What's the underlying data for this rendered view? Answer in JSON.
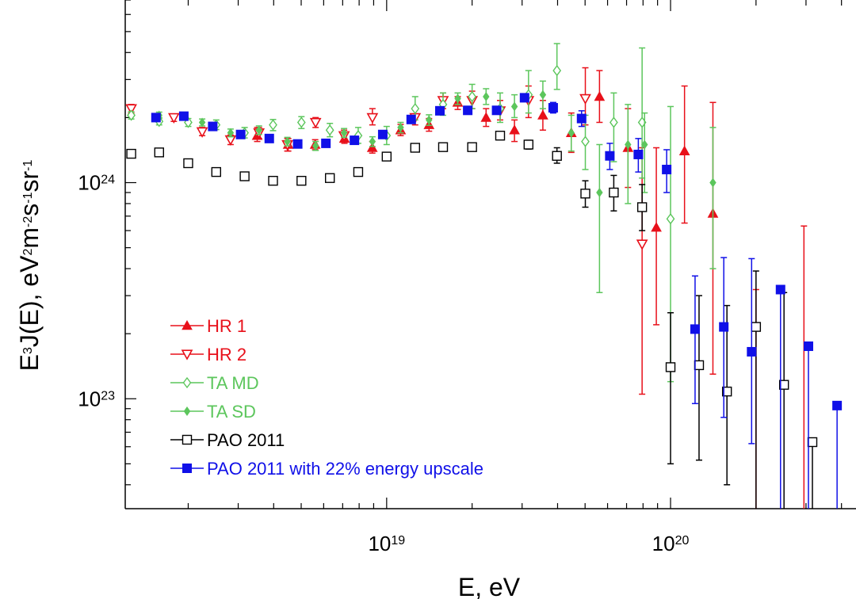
{
  "chart_data": {
    "type": "scatter",
    "xscale": "log",
    "yscale": "log",
    "xlim": [
      1.2e+18,
      4.5e+20
    ],
    "ylim": [
      3.1e+22,
      7e+24
    ],
    "xlabel": {
      "base": "E, eV"
    },
    "ylabel": {
      "p1": "E",
      "p1sup": "3",
      "p2": "J(E), eV",
      "p2sup": "2",
      "p3": "m",
      "p3sup": "-2",
      "p4": "s",
      "p4sup": "-1",
      "p5": "sr",
      "p5sup": "-1"
    },
    "xticks": [
      {
        "value": 1e+19,
        "base": "10",
        "exp": "19"
      },
      {
        "value": 1e+20,
        "base": "10",
        "exp": "20"
      }
    ],
    "yticks": [
      {
        "value": 1e+24,
        "base": "10",
        "exp": "24"
      },
      {
        "value": 1e+23,
        "base": "10",
        "exp": "23"
      }
    ],
    "legend_position": "bottom-left",
    "series": [
      {
        "name": "HR 1",
        "color": "#e8101a",
        "marker": "triangle-filled",
        "points": [
          {
            "x": 3.5e+18,
            "y": 1.65e+24,
            "lo": 1.55e+24,
            "hi": 1.8e+24
          },
          {
            "x": 4.5e+18,
            "y": 1.5e+24,
            "lo": 1.4e+24,
            "hi": 1.6e+24
          },
          {
            "x": 5.6e+18,
            "y": 1.5e+24,
            "lo": 1.42e+24,
            "hi": 1.58e+24
          },
          {
            "x": 7.1e+18,
            "y": 1.6e+24,
            "lo": 1.52e+24,
            "hi": 1.7e+24
          },
          {
            "x": 8.9e+18,
            "y": 1.45e+24,
            "lo": 1.37e+24,
            "hi": 1.55e+24
          },
          {
            "x": 1.12e+19,
            "y": 1.75e+24,
            "lo": 1.65e+24,
            "hi": 1.86e+24
          },
          {
            "x": 1.41e+19,
            "y": 1.85e+24,
            "lo": 1.73e+24,
            "hi": 1.98e+24
          },
          {
            "x": 1.78e+19,
            "y": 2.35e+24,
            "lo": 2.18e+24,
            "hi": 2.5e+24
          },
          {
            "x": 2.24e+19,
            "y": 2e+24,
            "lo": 1.82e+24,
            "hi": 2.2e+24
          },
          {
            "x": 2.82e+19,
            "y": 1.75e+24,
            "lo": 1.55e+24,
            "hi": 1.95e+24
          },
          {
            "x": 3.55e+19,
            "y": 2.05e+24,
            "lo": 1.75e+24,
            "hi": 2.4e+24
          },
          {
            "x": 4.47e+19,
            "y": 1.7e+24,
            "lo": 1.38e+24,
            "hi": 2.1e+24
          },
          {
            "x": 5.62e+19,
            "y": 2.5e+24,
            "lo": 1.9e+24,
            "hi": 3.3e+24
          },
          {
            "x": 7.08e+19,
            "y": 1.45e+24,
            "lo": 9.5e+23,
            "hi": 2.2e+24
          },
          {
            "x": 8.91e+19,
            "y": 6.2e+23,
            "lo": 2.2e+23,
            "hi": 1.45e+24
          },
          {
            "x": 1.12e+20,
            "y": 1.4e+24,
            "lo": 6.5e+23,
            "hi": 2.8e+24
          },
          {
            "x": 1.41e+20,
            "y": 7.2e+23,
            "lo": 1.3e+23,
            "hi": 2.35e+24
          },
          {
            "x": 2e+20,
            "y": null,
            "lo": 3.1e+22,
            "hi": 3.2e+23
          },
          {
            "x": 2.95e+20,
            "y": null,
            "lo": 3.1e+22,
            "hi": 6.3e+23
          }
        ]
      },
      {
        "name": "HR 2",
        "color": "#e8101a",
        "marker": "triangle-down-open",
        "points": [
          {
            "x": 1.26e+18,
            "y": 2.2e+24,
            "lo": 2.1e+24,
            "hi": 2.3e+24
          },
          {
            "x": 1.78e+18,
            "y": 2e+24,
            "lo": 1.92e+24,
            "hi": 2.08e+24
          },
          {
            "x": 2.24e+18,
            "y": 1.72e+24,
            "lo": 1.65e+24,
            "hi": 1.8e+24
          },
          {
            "x": 2.82e+18,
            "y": 1.58e+24,
            "lo": 1.5e+24,
            "hi": 1.66e+24
          },
          {
            "x": 3.55e+18,
            "y": 1.7e+24,
            "lo": 1.6e+24,
            "hi": 1.8e+24
          },
          {
            "x": 4.47e+18,
            "y": 1.5e+24,
            "lo": 1.4e+24,
            "hi": 1.6e+24
          },
          {
            "x": 5.62e+18,
            "y": 1.9e+24,
            "lo": 1.8e+24,
            "hi": 2e+24
          },
          {
            "x": 7.08e+18,
            "y": 1.65e+24,
            "lo": 1.55e+24,
            "hi": 1.75e+24
          },
          {
            "x": 8.91e+18,
            "y": 2e+24,
            "lo": 1.85e+24,
            "hi": 2.2e+24
          },
          {
            "x": 1.26e+19,
            "y": 2e+24,
            "lo": 1.85e+24,
            "hi": 2.2e+24
          },
          {
            "x": 1.58e+19,
            "y": 2.4e+24,
            "lo": 2.2e+24,
            "hi": 2.6e+24
          },
          {
            "x": 2e+19,
            "y": 2.4e+24,
            "lo": 2.2e+24,
            "hi": 2.65e+24
          },
          {
            "x": 2.51e+19,
            "y": 2.15e+24,
            "lo": 1.95e+24,
            "hi": 2.4e+24
          },
          {
            "x": 3.16e+19,
            "y": 2.4e+24,
            "lo": 2e+24,
            "hi": 2.8e+24
          },
          {
            "x": 5.01e+19,
            "y": 2.45e+24,
            "lo": 1.85e+24,
            "hi": 3.4e+24
          },
          {
            "x": 7.94e+19,
            "y": 5.2e+23,
            "lo": 1.05e+23,
            "hi": 1.45e+24
          }
        ]
      },
      {
        "name": "TA MD",
        "color": "#5cc65c",
        "marker": "diamond-open",
        "points": [
          {
            "x": 1.26e+18,
            "y": 2.05e+24,
            "lo": 1.97e+24,
            "hi": 2.13e+24
          },
          {
            "x": 1.58e+18,
            "y": 1.92e+24,
            "lo": 1.85e+24,
            "hi": 2e+24
          },
          {
            "x": 2e+18,
            "y": 1.9e+24,
            "lo": 1.82e+24,
            "hi": 1.98e+24
          },
          {
            "x": 2.51e+18,
            "y": 1.85e+24,
            "lo": 1.76e+24,
            "hi": 1.95e+24
          },
          {
            "x": 3.16e+18,
            "y": 1.7e+24,
            "lo": 1.61e+24,
            "hi": 1.8e+24
          },
          {
            "x": 3.98e+18,
            "y": 1.85e+24,
            "lo": 1.74e+24,
            "hi": 1.96e+24
          },
          {
            "x": 5.01e+18,
            "y": 1.9e+24,
            "lo": 1.78e+24,
            "hi": 2.02e+24
          },
          {
            "x": 6.31e+18,
            "y": 1.75e+24,
            "lo": 1.63e+24,
            "hi": 1.88e+24
          },
          {
            "x": 7.94e+18,
            "y": 1.65e+24,
            "lo": 1.52e+24,
            "hi": 1.8e+24
          },
          {
            "x": 1e+19,
            "y": 1.65e+24,
            "lo": 1.5e+24,
            "hi": 1.82e+24
          },
          {
            "x": 1.26e+19,
            "y": 2.2e+24,
            "lo": 1.95e+24,
            "hi": 2.5e+24
          },
          {
            "x": 1.58e+19,
            "y": 2.3e+24,
            "lo": 2.05e+24,
            "hi": 2.6e+24
          },
          {
            "x": 2e+19,
            "y": 2.5e+24,
            "lo": 2.2e+24,
            "hi": 2.85e+24
          },
          {
            "x": 2.51e+19,
            "y": 2.2e+24,
            "lo": 1.9e+24,
            "hi": 2.6e+24
          },
          {
            "x": 3.16e+19,
            "y": 2.55e+24,
            "lo": 2.1e+24,
            "hi": 3.3e+24
          },
          {
            "x": 3.98e+19,
            "y": 3.3e+24,
            "lo": 2.7e+24,
            "hi": 4.4e+24
          },
          {
            "x": 5.01e+19,
            "y": 1.55e+24,
            "lo": 1.15e+24,
            "hi": 2.05e+24
          },
          {
            "x": 6.31e+19,
            "y": 1.9e+24,
            "lo": 1.25e+24,
            "hi": 2.6e+24
          },
          {
            "x": 7.94e+19,
            "y": 1.9e+24,
            "lo": 1.05e+24,
            "hi": 4.2e+24
          },
          {
            "x": 1e+20,
            "y": 6.8e+23,
            "lo": 1.2e+23,
            "hi": 2.25e+24
          }
        ]
      },
      {
        "name": "TA SD",
        "color": "#5cc65c",
        "marker": "diamond-filled",
        "points": [
          {
            "x": 1.58e+18,
            "y": 2.05e+24,
            "lo": 1.98e+24,
            "hi": 2.12e+24
          },
          {
            "x": 2.24e+18,
            "y": 1.9e+24,
            "lo": 1.83e+24,
            "hi": 1.97e+24
          },
          {
            "x": 2.82e+18,
            "y": 1.7e+24,
            "lo": 1.63e+24,
            "hi": 1.77e+24
          },
          {
            "x": 3.55e+18,
            "y": 1.75e+24,
            "lo": 1.67e+24,
            "hi": 1.83e+24
          },
          {
            "x": 4.47e+18,
            "y": 1.55e+24,
            "lo": 1.48e+24,
            "hi": 1.62e+24
          },
          {
            "x": 5.62e+18,
            "y": 1.48e+24,
            "lo": 1.41e+24,
            "hi": 1.55e+24
          },
          {
            "x": 7.08e+18,
            "y": 1.7e+24,
            "lo": 1.62e+24,
            "hi": 1.78e+24
          },
          {
            "x": 8.91e+18,
            "y": 1.55e+24,
            "lo": 1.47e+24,
            "hi": 1.63e+24
          },
          {
            "x": 1.12e+19,
            "y": 1.8e+24,
            "lo": 1.7e+24,
            "hi": 1.9e+24
          },
          {
            "x": 1.41e+19,
            "y": 1.95e+24,
            "lo": 1.84e+24,
            "hi": 2.06e+24
          },
          {
            "x": 1.78e+19,
            "y": 2.45e+24,
            "lo": 2.3e+24,
            "hi": 2.6e+24
          },
          {
            "x": 2.24e+19,
            "y": 2.5e+24,
            "lo": 2.3e+24,
            "hi": 2.72e+24
          },
          {
            "x": 2.82e+19,
            "y": 2.25e+24,
            "lo": 2e+24,
            "hi": 2.55e+24
          },
          {
            "x": 3.55e+19,
            "y": 2.55e+24,
            "lo": 2.2e+24,
            "hi": 2.95e+24
          },
          {
            "x": 4.47e+19,
            "y": 1.7e+24,
            "lo": 1.4e+24,
            "hi": 2.05e+24
          },
          {
            "x": 5.62e+19,
            "y": 9e+23,
            "lo": 3.1e+23,
            "hi": 1.5e+24
          },
          {
            "x": 7.08e+19,
            "y": 1.5e+24,
            "lo": 8e+23,
            "hi": 2.3e+24
          },
          {
            "x": 8.1e+19,
            "y": 1.5e+24,
            "lo": 9e+23,
            "hi": 2.1e+24
          },
          {
            "x": 1.41e+20,
            "y": 1e+24,
            "lo": 4e+23,
            "hi": 1.8e+24
          }
        ]
      },
      {
        "name": "PAO 2011",
        "color": "#000000",
        "marker": "square-open",
        "points": [
          {
            "x": 1.26e+18,
            "y": 1.36e+24,
            "lo": null,
            "hi": null
          },
          {
            "x": 1.58e+18,
            "y": 1.38e+24,
            "lo": null,
            "hi": null
          },
          {
            "x": 2e+18,
            "y": 1.23e+24,
            "lo": null,
            "hi": null
          },
          {
            "x": 2.51e+18,
            "y": 1.12e+24,
            "lo": null,
            "hi": null
          },
          {
            "x": 3.16e+18,
            "y": 1.07e+24,
            "lo": null,
            "hi": null
          },
          {
            "x": 3.98e+18,
            "y": 1.02e+24,
            "lo": null,
            "hi": null
          },
          {
            "x": 5.01e+18,
            "y": 1.02e+24,
            "lo": null,
            "hi": null
          },
          {
            "x": 6.31e+18,
            "y": 1.05e+24,
            "lo": null,
            "hi": null
          },
          {
            "x": 7.94e+18,
            "y": 1.12e+24,
            "lo": null,
            "hi": null
          },
          {
            "x": 1e+19,
            "y": 1.32e+24,
            "lo": null,
            "hi": null
          },
          {
            "x": 1.26e+19,
            "y": 1.45e+24,
            "lo": null,
            "hi": null
          },
          {
            "x": 1.58e+19,
            "y": 1.46e+24,
            "lo": null,
            "hi": null
          },
          {
            "x": 2e+19,
            "y": 1.46e+24,
            "lo": null,
            "hi": null
          },
          {
            "x": 2.51e+19,
            "y": 1.65e+24,
            "lo": 1.6e+24,
            "hi": 1.71e+24
          },
          {
            "x": 3.16e+19,
            "y": 1.5e+24,
            "lo": 1.43e+24,
            "hi": 1.57e+24
          },
          {
            "x": 3.98e+19,
            "y": 1.33e+24,
            "lo": 1.23e+24,
            "hi": 1.45e+24
          },
          {
            "x": 5.01e+19,
            "y": 8.9e+23,
            "lo": 7.7e+23,
            "hi": 1.02e+24
          },
          {
            "x": 6.31e+19,
            "y": 9e+23,
            "lo": 7.4e+23,
            "hi": 1.08e+24
          },
          {
            "x": 7.94e+19,
            "y": 7.7e+23,
            "lo": 6e+23,
            "hi": 9.8e+23
          },
          {
            "x": 1e+20,
            "y": 1.4e+23,
            "lo": 5e+22,
            "hi": 2.5e+23
          },
          {
            "x": 1.26e+20,
            "y": 1.43e+23,
            "lo": 5.2e+22,
            "hi": 3e+23
          },
          {
            "x": 1.58e+20,
            "y": 1.08e+23,
            "lo": 4e+22,
            "hi": 2.7e+23
          },
          {
            "x": 2e+20,
            "y": 2.15e+23,
            "lo": 3.1e+22,
            "hi": 3.9e+23
          },
          {
            "x": 2.51e+20,
            "y": 1.16e+23,
            "lo": 3.1e+22,
            "hi": 3.1e+23
          },
          {
            "x": 3.16e+20,
            "y": 6.3e+22,
            "lo": 3.1e+22,
            "hi": null
          }
        ]
      },
      {
        "name": "PAO 2011 with 22% energy upscale",
        "color": "#1010e8",
        "marker": "square-filled",
        "points": [
          {
            "x": 1.54e+18,
            "y": 2e+24,
            "lo": null,
            "hi": null
          },
          {
            "x": 1.93e+18,
            "y": 2.03e+24,
            "lo": null,
            "hi": null
          },
          {
            "x": 2.44e+18,
            "y": 1.82e+24,
            "lo": null,
            "hi": null
          },
          {
            "x": 3.06e+18,
            "y": 1.67e+24,
            "lo": null,
            "hi": null
          },
          {
            "x": 3.86e+18,
            "y": 1.6e+24,
            "lo": null,
            "hi": null
          },
          {
            "x": 4.86e+18,
            "y": 1.51e+24,
            "lo": null,
            "hi": null
          },
          {
            "x": 6.11e+18,
            "y": 1.52e+24,
            "lo": null,
            "hi": null
          },
          {
            "x": 7.7e+18,
            "y": 1.57e+24,
            "lo": null,
            "hi": null
          },
          {
            "x": 9.69e+18,
            "y": 1.67e+24,
            "lo": null,
            "hi": null
          },
          {
            "x": 1.22e+19,
            "y": 1.96e+24,
            "lo": null,
            "hi": null
          },
          {
            "x": 1.54e+19,
            "y": 2.15e+24,
            "lo": null,
            "hi": null
          },
          {
            "x": 1.93e+19,
            "y": 2.16e+24,
            "lo": null,
            "hi": null
          },
          {
            "x": 2.44e+19,
            "y": 2.16e+24,
            "lo": null,
            "hi": null
          },
          {
            "x": 3.06e+19,
            "y": 2.47e+24,
            "lo": null,
            "hi": null
          },
          {
            "x": 3.86e+19,
            "y": 2.22e+24,
            "lo": 2.1e+24,
            "hi": 2.35e+24
          },
          {
            "x": 4.86e+19,
            "y": 1.98e+24,
            "lo": 1.82e+24,
            "hi": 2.15e+24
          },
          {
            "x": 6.11e+19,
            "y": 1.33e+24,
            "lo": 1.15e+24,
            "hi": 1.52e+24
          },
          {
            "x": 7.7e+19,
            "y": 1.35e+24,
            "lo": 1.12e+24,
            "hi": 1.6e+24
          },
          {
            "x": 9.69e+19,
            "y": 1.15e+24,
            "lo": 9e+23,
            "hi": 1.42e+24
          },
          {
            "x": 1.22e+20,
            "y": 2.1e+23,
            "lo": 9.5e+22,
            "hi": 3.7e+23
          },
          {
            "x": 1.54e+20,
            "y": 2.15e+23,
            "lo": 8.2e+22,
            "hi": 4.5e+23
          },
          {
            "x": 1.93e+20,
            "y": 1.65e+23,
            "lo": 6.2e+22,
            "hi": 4.45e+23
          },
          {
            "x": 2.44e+20,
            "y": 3.2e+23,
            "lo": 3.1e+22,
            "hi": null
          },
          {
            "x": 3.06e+20,
            "y": 1.75e+23,
            "lo": 3.1e+22,
            "hi": null
          },
          {
            "x": 3.86e+20,
            "y": 9.3e+22,
            "lo": 3.1e+22,
            "hi": null
          }
        ]
      }
    ]
  }
}
